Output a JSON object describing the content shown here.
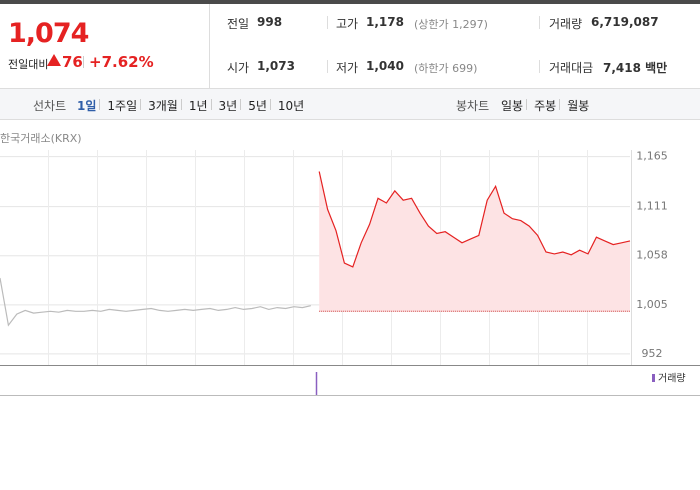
{
  "header": {
    "price": "1,074",
    "change_label": "전일대비",
    "change": "76",
    "change_rate": "+7.62%"
  },
  "stats": [
    {
      "label": "전일",
      "value": "998"
    },
    {
      "label": "고가",
      "value": "1,178",
      "note": "(상한가 1,297)"
    },
    {
      "label": "거래량",
      "value": "6,719,087"
    },
    {
      "label": "시가",
      "value": "1,073"
    },
    {
      "label": "저가",
      "value": "1,040",
      "note": "(하한가 699)"
    },
    {
      "label": "거래대금",
      "value": "7,418 백만"
    }
  ],
  "tabs": {
    "line_label": "선차트",
    "line_tabs": [
      "1일",
      "1주일",
      "3개월",
      "1년",
      "3년",
      "5년",
      "10년"
    ],
    "candle_label": "봉차트",
    "candle_tabs": [
      "일봉",
      "주봉",
      "월봉"
    ]
  },
  "chart_data": {
    "type": "line",
    "source": "한국거래소(KRX)",
    "volume_legend": "거래량",
    "categories": [
      null,
      null,
      null,
      null,
      null,
      null,
      null,
      null,
      null,
      null,
      null,
      null,
      null,
      null,
      null,
      null,
      null,
      null,
      null,
      null,
      null,
      null,
      null,
      null,
      null,
      null,
      null,
      null,
      null,
      null,
      null,
      null,
      null,
      null,
      null,
      null,
      null,
      null,
      null,
      null,
      null,
      null,
      null,
      null,
      null,
      null,
      null,
      null,
      null,
      null,
      null,
      null,
      null,
      null,
      null,
      null,
      null,
      null,
      null,
      null,
      null,
      null,
      null,
      null,
      null,
      null,
      null,
      null,
      null,
      null,
      null,
      null,
      null,
      null,
      null,
      null
    ],
    "series": [
      {
        "color": "#bbbbbb",
        "values": [
          1034,
          983,
          995,
          999,
          996,
          997,
          998,
          997,
          999,
          998,
          998,
          999,
          998,
          1000,
          999,
          998,
          999,
          1000,
          1001,
          999,
          998,
          999,
          1000,
          999,
          1000,
          1001,
          999,
          1000,
          1002,
          1000,
          1001,
          1003,
          1000,
          1002,
          1001,
          1003,
          1002,
          1004,
          null,
          null,
          null,
          null,
          null,
          null,
          null,
          null,
          null,
          null,
          null,
          null,
          null,
          null,
          null,
          null,
          null,
          null,
          null,
          null,
          null,
          null,
          null,
          null,
          null,
          null,
          null,
          null,
          null,
          null,
          null,
          null,
          null,
          null,
          null,
          null,
          null,
          null
        ]
      },
      {
        "color": "#e52222",
        "values": [
          null,
          null,
          null,
          null,
          null,
          null,
          null,
          null,
          null,
          null,
          null,
          null,
          null,
          null,
          null,
          null,
          null,
          null,
          null,
          null,
          null,
          null,
          null,
          null,
          null,
          null,
          null,
          null,
          null,
          null,
          null,
          null,
          null,
          null,
          null,
          null,
          null,
          null,
          1149,
          1108,
          1085,
          1050,
          1046,
          1072,
          1092,
          1120,
          1115,
          1128,
          1118,
          1120,
          1104,
          1090,
          1082,
          1084,
          1078,
          1072,
          1076,
          1080,
          1118,
          1133,
          1104,
          1098,
          1096,
          1090,
          1080,
          1062,
          1060,
          1062,
          1059,
          1064,
          1060,
          1078,
          1074,
          1070,
          1072,
          1074
        ]
      }
    ],
    "reference": 998,
    "ylim": [
      940,
      1183
    ],
    "yticks": [
      {
        "value": 952,
        "label": "952"
      },
      {
        "value": 1005,
        "label": "1,005"
      },
      {
        "value": 1058,
        "label": "1,058"
      },
      {
        "value": 1111,
        "label": "1,111"
      },
      {
        "value": 1165,
        "label": "1,165"
      }
    ],
    "grid": true
  }
}
